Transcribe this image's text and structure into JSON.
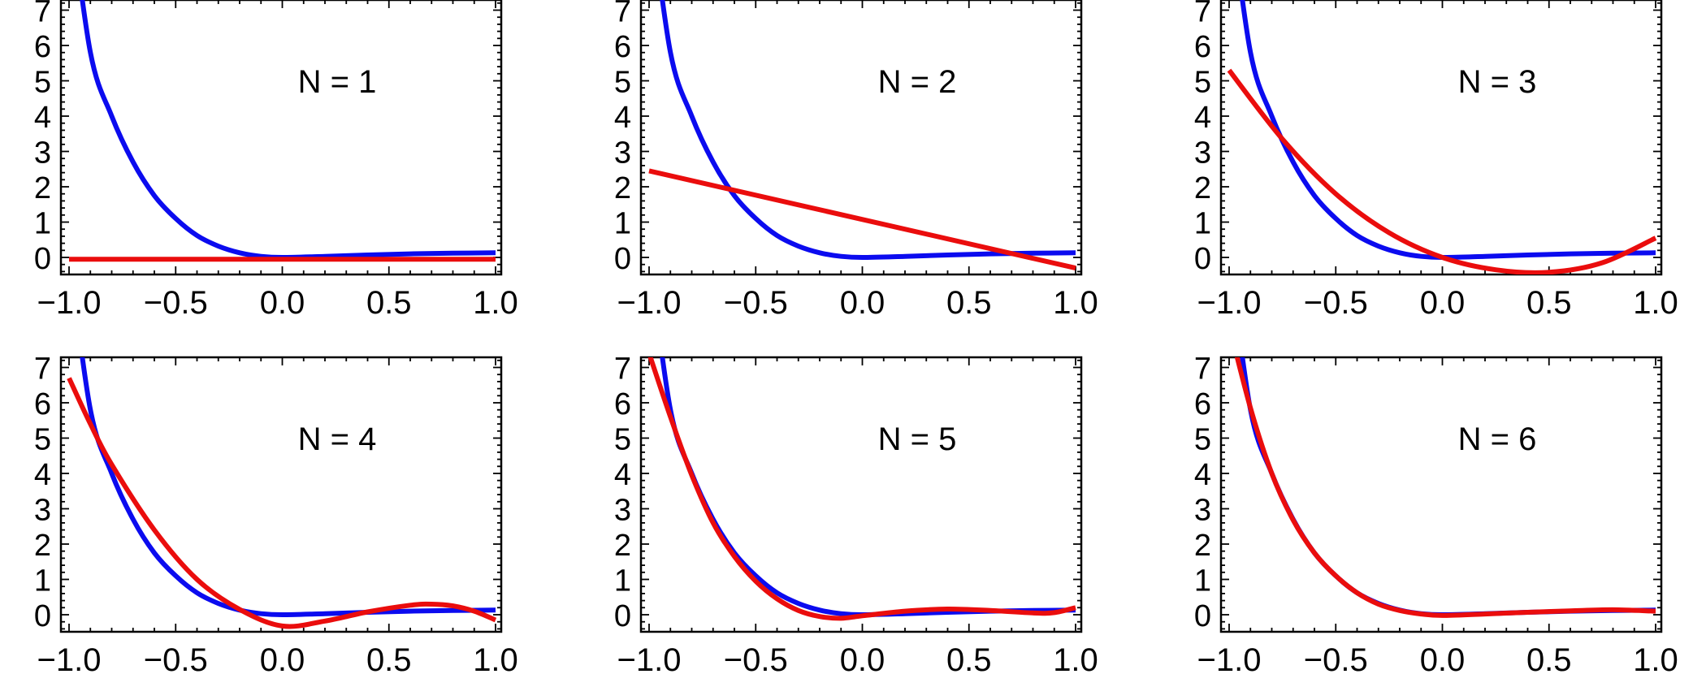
{
  "colors": {
    "reference": "#0b0bef",
    "approximation": "#ea0d0d",
    "axes": "#000000",
    "background": "#ffffff"
  },
  "x_tick_labels": [
    "−1.0",
    "−0.5",
    "0.0",
    "0.5",
    "1.0"
  ],
  "y_tick_labels": [
    "0",
    "1",
    "2",
    "3",
    "4",
    "5",
    "6",
    "7"
  ],
  "chart_data": [
    {
      "type": "line",
      "annotation": "N = 1",
      "xlim": [
        -1.02,
        1.02
      ],
      "ylim": [
        -0.5,
        7.2
      ],
      "grid": false,
      "x_ticks": [
        -1.0,
        -0.5,
        0.0,
        0.5,
        1.0
      ],
      "y_ticks": [
        0,
        1,
        2,
        3,
        4,
        5,
        6,
        7
      ],
      "series": [
        {
          "color": "blue",
          "x": [
            -1.0,
            -0.9,
            -0.8,
            -0.7,
            -0.6,
            -0.5,
            -0.4,
            -0.3,
            -0.2,
            -0.1,
            0.0,
            0.2,
            0.4,
            0.6,
            0.8,
            1.0
          ],
          "y": [
            10.2,
            5.8,
            4.0,
            2.7,
            1.75,
            1.1,
            0.62,
            0.32,
            0.13,
            0.03,
            0.0,
            0.03,
            0.07,
            0.1,
            0.12,
            0.13
          ]
        },
        {
          "color": "red",
          "x": [
            -1.0,
            1.0
          ],
          "y": [
            -0.05,
            -0.05
          ]
        }
      ]
    },
    {
      "type": "line",
      "annotation": "N = 2",
      "xlim": [
        -1.02,
        1.02
      ],
      "ylim": [
        -0.5,
        7.2
      ],
      "grid": false,
      "x_ticks": [
        -1.0,
        -0.5,
        0.0,
        0.5,
        1.0
      ],
      "y_ticks": [
        0,
        1,
        2,
        3,
        4,
        5,
        6,
        7
      ],
      "series": [
        {
          "color": "blue",
          "x": [
            -1.0,
            -0.9,
            -0.8,
            -0.7,
            -0.6,
            -0.5,
            -0.4,
            -0.3,
            -0.2,
            -0.1,
            0.0,
            0.2,
            0.4,
            0.6,
            0.8,
            1.0
          ],
          "y": [
            10.2,
            5.8,
            4.0,
            2.7,
            1.75,
            1.1,
            0.62,
            0.32,
            0.13,
            0.03,
            0.0,
            0.03,
            0.07,
            0.1,
            0.12,
            0.13
          ]
        },
        {
          "color": "red",
          "x": [
            -1.0,
            1.0
          ],
          "y": [
            2.45,
            -0.3
          ]
        }
      ]
    },
    {
      "type": "line",
      "annotation": "N = 3",
      "xlim": [
        -1.02,
        1.02
      ],
      "ylim": [
        -0.5,
        7.2
      ],
      "grid": false,
      "x_ticks": [
        -1.0,
        -0.5,
        0.0,
        0.5,
        1.0
      ],
      "y_ticks": [
        0,
        1,
        2,
        3,
        4,
        5,
        6,
        7
      ],
      "series": [
        {
          "color": "blue",
          "x": [
            -1.0,
            -0.9,
            -0.8,
            -0.7,
            -0.6,
            -0.5,
            -0.4,
            -0.3,
            -0.2,
            -0.1,
            0.0,
            0.2,
            0.4,
            0.6,
            0.8,
            1.0
          ],
          "y": [
            10.2,
            5.8,
            4.0,
            2.7,
            1.75,
            1.1,
            0.62,
            0.32,
            0.13,
            0.03,
            0.0,
            0.03,
            0.07,
            0.1,
            0.12,
            0.13
          ]
        },
        {
          "color": "red",
          "x": [
            -1.0,
            -0.75,
            -0.5,
            -0.25,
            0.0,
            0.25,
            0.5,
            0.75,
            1.0
          ],
          "y": [
            5.3,
            3.35,
            1.8,
            0.7,
            0.0,
            -0.35,
            -0.42,
            -0.15,
            0.55
          ]
        }
      ]
    },
    {
      "type": "line",
      "annotation": "N = 4",
      "xlim": [
        -1.02,
        1.02
      ],
      "ylim": [
        -0.5,
        7.2
      ],
      "grid": false,
      "x_ticks": [
        -1.0,
        -0.5,
        0.0,
        0.5,
        1.0
      ],
      "y_ticks": [
        0,
        1,
        2,
        3,
        4,
        5,
        6,
        7
      ],
      "series": [
        {
          "color": "blue",
          "x": [
            -1.0,
            -0.9,
            -0.8,
            -0.7,
            -0.6,
            -0.5,
            -0.4,
            -0.3,
            -0.2,
            -0.1,
            0.0,
            0.2,
            0.4,
            0.6,
            0.8,
            1.0
          ],
          "y": [
            10.2,
            5.8,
            4.0,
            2.7,
            1.75,
            1.1,
            0.62,
            0.32,
            0.13,
            0.03,
            0.0,
            0.03,
            0.07,
            0.1,
            0.12,
            0.13
          ]
        },
        {
          "color": "red",
          "x": [
            -1.0,
            -0.9,
            -0.8,
            -0.6,
            -0.4,
            -0.2,
            0.0,
            0.2,
            0.4,
            0.6,
            0.7,
            0.8,
            0.9,
            1.0
          ],
          "y": [
            6.7,
            5.4,
            4.25,
            2.4,
            1.0,
            0.15,
            -0.32,
            -0.18,
            0.08,
            0.27,
            0.3,
            0.25,
            0.1,
            -0.15
          ]
        }
      ]
    },
    {
      "type": "line",
      "annotation": "N = 5",
      "xlim": [
        -1.02,
        1.02
      ],
      "ylim": [
        -0.5,
        7.2
      ],
      "grid": false,
      "x_ticks": [
        -1.0,
        -0.5,
        0.0,
        0.5,
        1.0
      ],
      "y_ticks": [
        0,
        1,
        2,
        3,
        4,
        5,
        6,
        7
      ],
      "series": [
        {
          "color": "blue",
          "x": [
            -1.0,
            -0.9,
            -0.8,
            -0.7,
            -0.6,
            -0.5,
            -0.4,
            -0.3,
            -0.2,
            -0.1,
            0.0,
            0.2,
            0.4,
            0.6,
            0.8,
            1.0
          ],
          "y": [
            10.2,
            5.8,
            4.0,
            2.7,
            1.75,
            1.1,
            0.62,
            0.32,
            0.13,
            0.03,
            0.0,
            0.03,
            0.07,
            0.1,
            0.12,
            0.13
          ]
        },
        {
          "color": "red",
          "x": [
            -1.0,
            -0.9,
            -0.8,
            -0.7,
            -0.6,
            -0.5,
            -0.4,
            -0.3,
            -0.2,
            -0.1,
            0.0,
            0.2,
            0.4,
            0.6,
            0.8,
            0.9,
            1.0
          ],
          "y": [
            7.4,
            5.6,
            3.95,
            2.6,
            1.65,
            0.95,
            0.45,
            0.12,
            -0.05,
            -0.1,
            -0.03,
            0.1,
            0.16,
            0.12,
            0.05,
            0.06,
            0.2
          ]
        }
      ]
    },
    {
      "type": "line",
      "annotation": "N = 6",
      "xlim": [
        -1.02,
        1.02
      ],
      "ylim": [
        -0.5,
        7.2
      ],
      "grid": false,
      "x_ticks": [
        -1.0,
        -0.5,
        0.0,
        0.5,
        1.0
      ],
      "y_ticks": [
        0,
        1,
        2,
        3,
        4,
        5,
        6,
        7
      ],
      "series": [
        {
          "color": "blue",
          "x": [
            -1.0,
            -0.9,
            -0.8,
            -0.7,
            -0.6,
            -0.5,
            -0.4,
            -0.3,
            -0.2,
            -0.1,
            0.0,
            0.2,
            0.4,
            0.6,
            0.8,
            1.0
          ],
          "y": [
            10.2,
            5.8,
            4.0,
            2.7,
            1.75,
            1.1,
            0.62,
            0.32,
            0.13,
            0.03,
            0.0,
            0.03,
            0.07,
            0.1,
            0.12,
            0.13
          ]
        },
        {
          "color": "red",
          "x": [
            -1.0,
            -0.9,
            -0.8,
            -0.7,
            -0.6,
            -0.5,
            -0.4,
            -0.3,
            -0.2,
            -0.1,
            0.0,
            0.2,
            0.4,
            0.6,
            0.8,
            1.0
          ],
          "y": [
            8.2,
            5.85,
            4.0,
            2.68,
            1.75,
            1.1,
            0.62,
            0.3,
            0.12,
            0.02,
            -0.02,
            0.02,
            0.07,
            0.11,
            0.14,
            0.1
          ]
        }
      ]
    }
  ]
}
